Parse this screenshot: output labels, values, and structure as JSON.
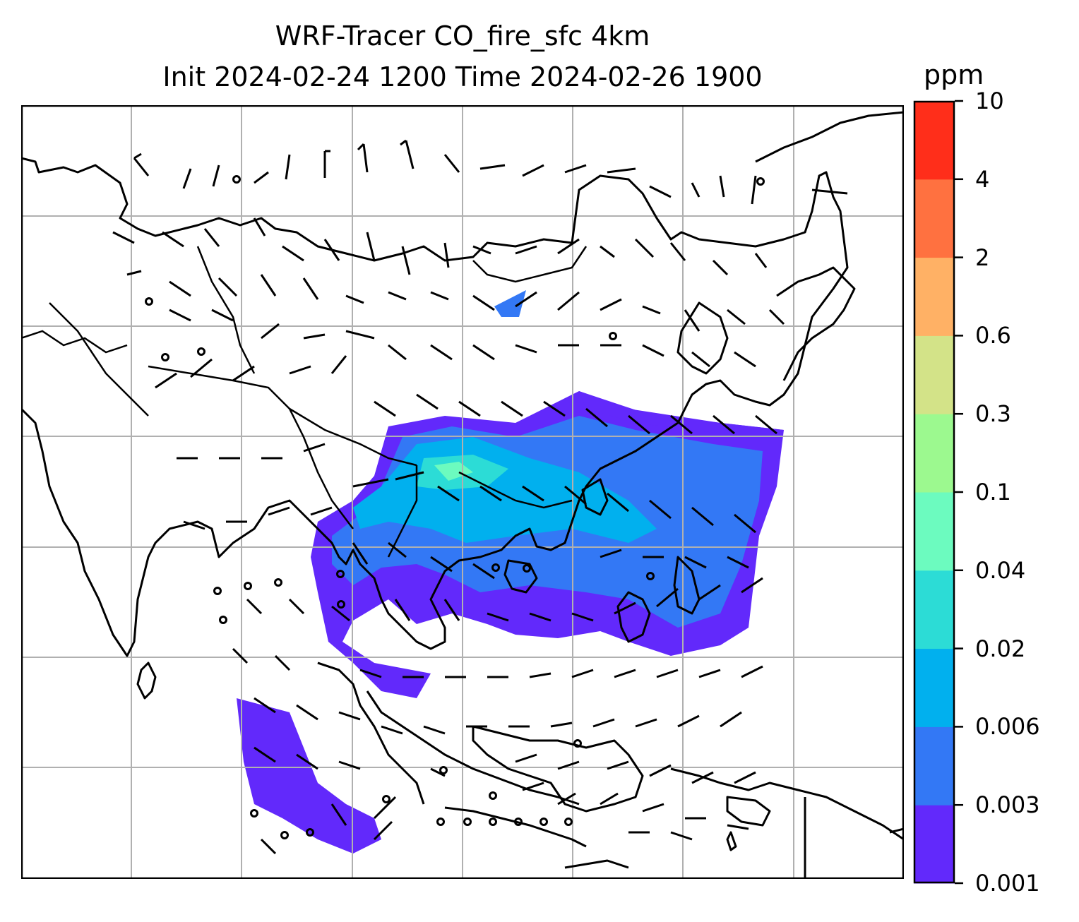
{
  "title": {
    "line1": "WRF-Tracer CO_fire_sfc 4km",
    "line2": "Init 2024-02-24 1200 Time 2024-02-26 1900"
  },
  "colorbar": {
    "unit": "ppm",
    "levels": [
      "0.001",
      "0.003",
      "0.006",
      "0.02",
      "0.04",
      "0.1",
      "0.3",
      "0.6",
      "2",
      "4",
      "10"
    ],
    "colors": [
      "#6229fb",
      "#3378f5",
      "#01b0ee",
      "#2cdcd6",
      "#6cfbbf",
      "#9cf98f",
      "#d3e388",
      "#ffb165",
      "#ff7140",
      "#ff2e1a"
    ]
  }
}
